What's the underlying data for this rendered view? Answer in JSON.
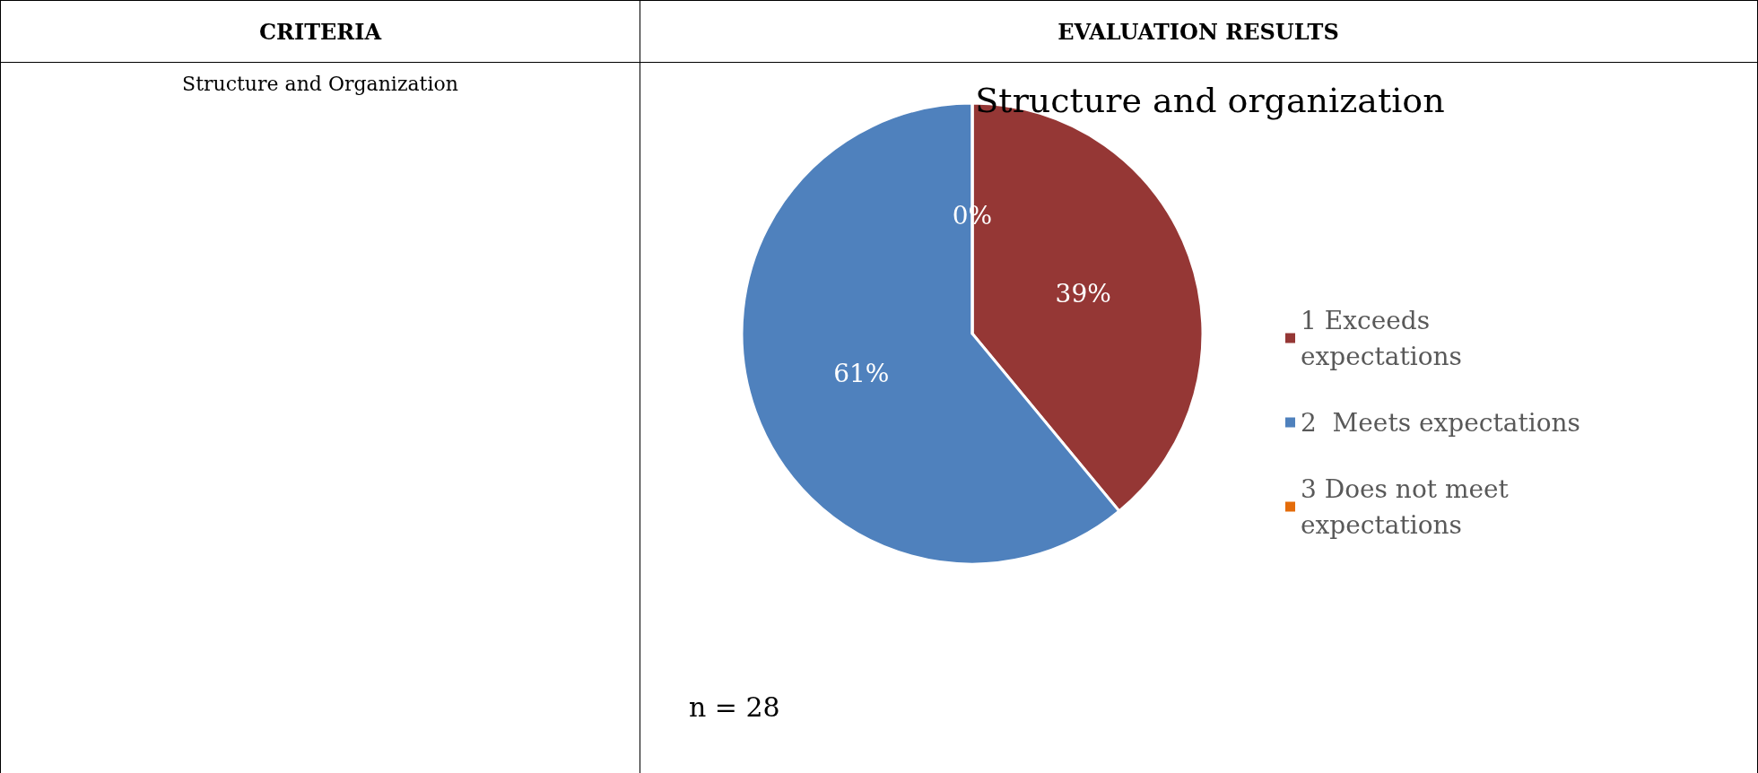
{
  "chart_data": {
    "type": "pie",
    "title": "Structure and organization",
    "categories": [
      "1 Exceeds expectations",
      "2  Meets expectations",
      "3 Does not meet expectations"
    ],
    "values": [
      39,
      61,
      0
    ],
    "colors": [
      "#953735",
      "#4f81bd",
      "#e46c0a"
    ],
    "value_labels": [
      "39%",
      "61%",
      "0%"
    ],
    "legend": "right",
    "annotations": [
      "CRITERIA",
      "EVALUATION RESULTS",
      "Structure and Organization",
      "n = 28"
    ]
  }
}
